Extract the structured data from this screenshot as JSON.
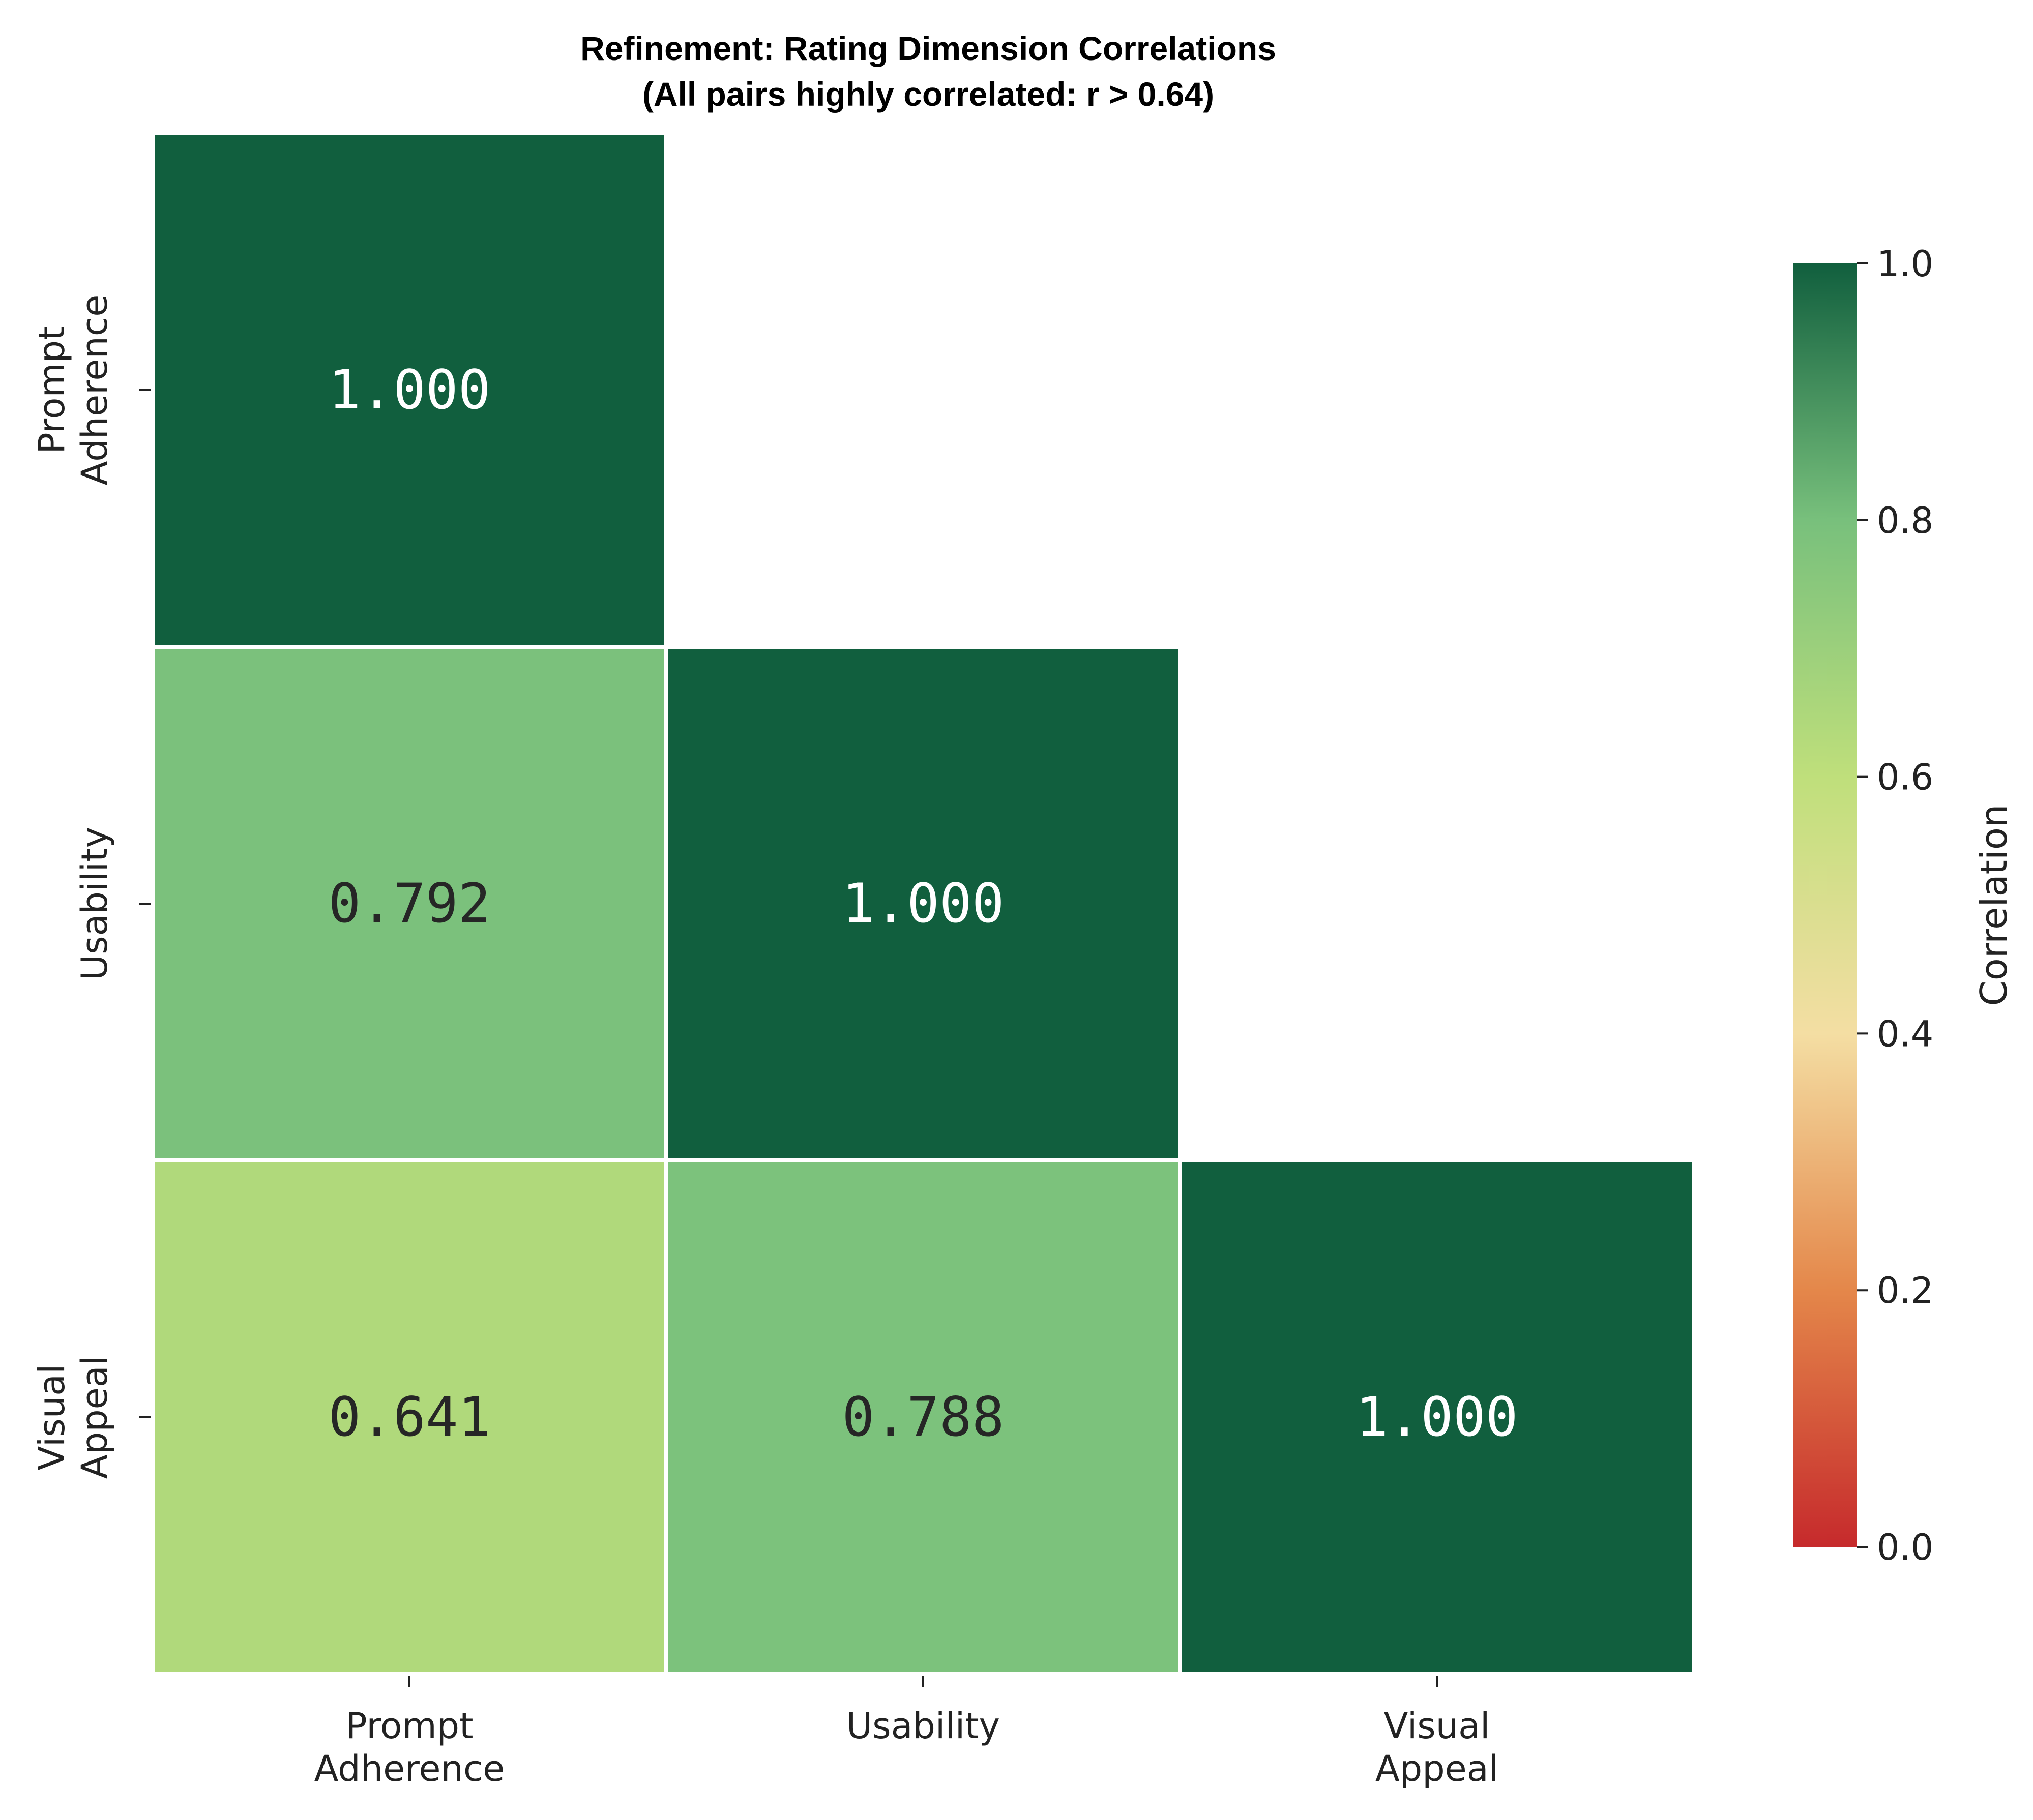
{
  "chart_data": {
    "type": "heatmap",
    "title": "Refinement: Rating Dimension Correlations",
    "subtitle": "(All pairs highly correlated: r > 0.64)",
    "rows": [
      [
        "Prompt",
        "Adherence"
      ],
      [
        "Usability"
      ],
      [
        "Visual",
        "Appeal"
      ]
    ],
    "columns": [
      [
        "Prompt",
        "Adherence"
      ],
      [
        "Usability"
      ],
      [
        "Visual",
        "Appeal"
      ]
    ],
    "matrix": [
      [
        1.0,
        null,
        null
      ],
      [
        0.792,
        1.0,
        null
      ],
      [
        0.641,
        0.788,
        1.0
      ]
    ],
    "cell_labels": [
      [
        "1.000",
        "",
        ""
      ],
      [
        "0.792",
        "1.000",
        ""
      ],
      [
        "0.641",
        "0.788",
        "1.000"
      ]
    ],
    "mask": "upper-triangle",
    "colorbar": {
      "label": "Correlation",
      "range": [
        0,
        1
      ],
      "ticks": [
        "0.0",
        "0.2",
        "0.4",
        "0.6",
        "0.8",
        "1.0"
      ],
      "colormap": "RdYlGn",
      "colors": [
        "#c62a2c",
        "#e4874a",
        "#f4dea3",
        "#bfdf7b",
        "#78c07c",
        "#115f3e"
      ]
    }
  }
}
